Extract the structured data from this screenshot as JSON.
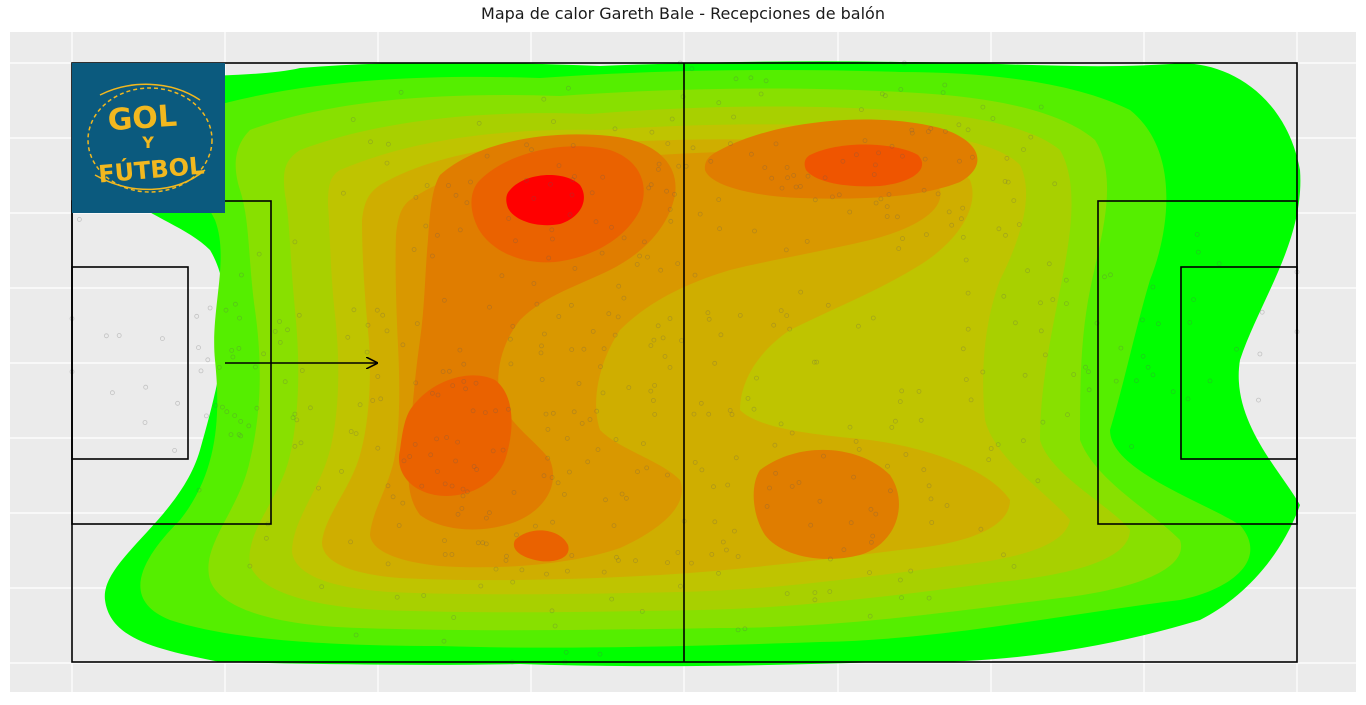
{
  "chart_data": {
    "type": "heatmap",
    "title": "Mapa de calor Gareth Bale - Recepciones de balón",
    "xlabel": "",
    "ylabel": "",
    "xlim": [
      0,
      100
    ],
    "ylim": [
      0,
      100
    ],
    "grid": true,
    "colorscale": [
      "#00ff00",
      "#ff0000"
    ],
    "attack_direction": "left-to-right",
    "hotspots": [
      {
        "x": 39,
        "y": 77,
        "intensity": 1.0
      },
      {
        "x": 65,
        "y": 83,
        "intensity": 0.85
      },
      {
        "x": 31,
        "y": 37,
        "intensity": 0.8
      },
      {
        "x": 61,
        "y": 25,
        "intensity": 0.7
      },
      {
        "x": 38,
        "y": 19,
        "intensity": 0.72
      },
      {
        "x": 50,
        "y": 50,
        "intensity": 0.45
      },
      {
        "x": 17,
        "y": 50,
        "intensity": 0.3
      },
      {
        "x": 83,
        "y": 55,
        "intensity": 0.35
      }
    ]
  },
  "logo": {
    "line1": "GOL",
    "line2": "Y",
    "line3": "FÚTBOL",
    "background": "#0b5a7e",
    "color": "#f2b81f"
  }
}
